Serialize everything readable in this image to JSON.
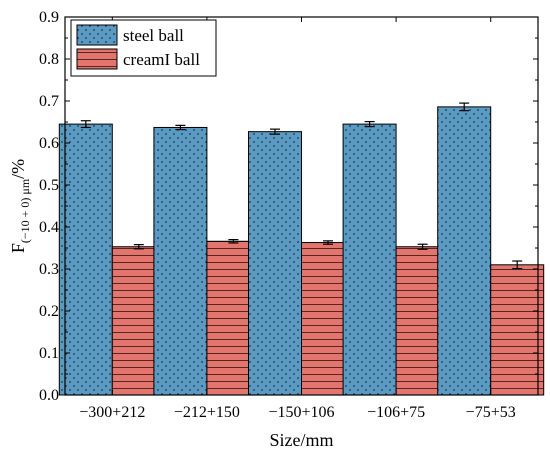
{
  "chart_data": {
    "type": "bar",
    "xlabel": "Size/mm",
    "ylabel": {
      "main": "F",
      "subscript": "(−10 + 0) μm",
      "suffix": "/%"
    },
    "ylim": [
      0,
      0.9
    ],
    "yticks": [
      "0.0",
      "0.1",
      "0.2",
      "0.3",
      "0.4",
      "0.5",
      "0.6",
      "0.7",
      "0.8",
      "0.9"
    ],
    "categories": [
      "−300+212",
      "−212+150",
      "−150+106",
      "−106+75",
      "−75+53"
    ],
    "series": [
      {
        "name": "steel ball",
        "values": [
          0.645,
          0.637,
          0.627,
          0.645,
          0.686
        ],
        "errors": [
          0.008,
          0.005,
          0.006,
          0.006,
          0.009
        ],
        "color": "#5b9bc3",
        "pattern": "dots"
      },
      {
        "name": "creamI ball",
        "values": [
          0.353,
          0.366,
          0.363,
          0.353,
          0.31
        ],
        "errors": [
          0.005,
          0.004,
          0.004,
          0.006,
          0.009
        ],
        "color": "#e2756e",
        "pattern": "horizontal-lines"
      }
    ],
    "legend_position": "top-left",
    "grid": false
  }
}
